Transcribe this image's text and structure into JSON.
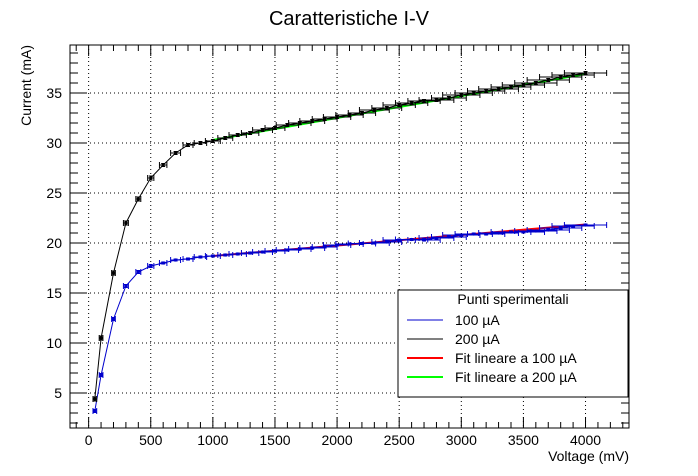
{
  "chart_data": {
    "type": "line",
    "title": "Caratteristiche I-V",
    "xlabel": "Voltage (mV)",
    "ylabel": "Current (mA)",
    "xlim": [
      -150,
      4350
    ],
    "ylim": [
      1.5,
      39.8
    ],
    "xticks": [
      0,
      500,
      1000,
      1500,
      2000,
      2500,
      3000,
      3500,
      4000
    ],
    "yticks": [
      5,
      10,
      15,
      20,
      25,
      30,
      35
    ],
    "grid": true,
    "legend": {
      "title": "Punti sperimentali",
      "placement": "bottom-right",
      "entries": [
        "100 µA",
        "200 µA",
        "Fit lineare a 100 µA",
        "Fit lineare a 200 µA"
      ]
    },
    "series": [
      {
        "name": "100 µA",
        "color": "#0000cc",
        "x": [
          50,
          100,
          200,
          300,
          400,
          500,
          600,
          700,
          800,
          900,
          1000,
          1100,
          1200,
          1300,
          1400,
          1500,
          1600,
          1700,
          1800,
          1900,
          2000,
          2100,
          2200,
          2300,
          2400,
          2500,
          2600,
          2700,
          2800,
          2900,
          3000,
          3100,
          3200,
          3300,
          3400,
          3500,
          3600,
          3700,
          3800,
          3900,
          4000
        ],
        "y": [
          3.2,
          6.8,
          12.4,
          15.7,
          17.1,
          17.7,
          18.0,
          18.3,
          18.4,
          18.6,
          18.7,
          18.8,
          18.9,
          19.0,
          19.1,
          19.2,
          19.3,
          19.4,
          19.5,
          19.6,
          19.8,
          19.9,
          19.95,
          20.0,
          20.1,
          20.3,
          20.35,
          20.3,
          20.5,
          20.6,
          20.8,
          20.9,
          20.9,
          21.0,
          21.1,
          21.1,
          21.2,
          21.3,
          21.5,
          21.7,
          21.8
        ],
        "xerr": [
          15,
          15,
          15,
          20,
          20,
          25,
          30,
          40,
          40,
          50,
          60,
          60,
          70,
          70,
          80,
          80,
          90,
          90,
          100,
          100,
          110,
          110,
          110,
          120,
          120,
          130,
          130,
          130,
          140,
          140,
          150,
          150,
          150,
          160,
          160,
          170,
          170,
          170,
          170,
          170,
          170
        ],
        "yerr": [
          0.15,
          0.15,
          0.15,
          0.15,
          0.15,
          0.15,
          0.1,
          0.1,
          0.1,
          0.1,
          0.1,
          0.1,
          0.1,
          0.1,
          0.1,
          0.1,
          0.1,
          0.1,
          0.1,
          0.1,
          0.1,
          0.1,
          0.1,
          0.1,
          0.1,
          0.1,
          0.1,
          0.1,
          0.1,
          0.1,
          0.1,
          0.1,
          0.1,
          0.1,
          0.1,
          0.1,
          0.1,
          0.1,
          0.1,
          0.1,
          0.1
        ]
      },
      {
        "name": "200 µA",
        "color": "#000000",
        "x": [
          50,
          100,
          200,
          300,
          400,
          500,
          600,
          700,
          800,
          900,
          1000,
          1100,
          1200,
          1300,
          1400,
          1500,
          1600,
          1700,
          1800,
          1900,
          2000,
          2100,
          2200,
          2300,
          2400,
          2500,
          2600,
          2700,
          2800,
          2900,
          3000,
          3100,
          3200,
          3300,
          3400,
          3500,
          3600,
          3700,
          3800,
          3900,
          4000
        ],
        "y": [
          4.4,
          10.5,
          17.0,
          22.0,
          24.4,
          26.5,
          27.8,
          29.0,
          29.8,
          30.0,
          30.2,
          30.5,
          30.8,
          31.0,
          31.3,
          31.5,
          31.8,
          32.0,
          32.2,
          32.4,
          32.6,
          32.8,
          33.0,
          33.3,
          33.5,
          33.8,
          34.0,
          34.2,
          34.3,
          34.5,
          34.8,
          35.0,
          35.2,
          35.4,
          35.6,
          35.8,
          36.0,
          36.3,
          36.6,
          36.8,
          37.0
        ],
        "xerr": [
          15,
          15,
          15,
          20,
          20,
          25,
          30,
          40,
          40,
          50,
          60,
          60,
          70,
          70,
          80,
          80,
          90,
          90,
          100,
          100,
          110,
          110,
          110,
          120,
          120,
          130,
          130,
          130,
          140,
          140,
          150,
          150,
          150,
          160,
          160,
          170,
          170,
          170,
          170,
          170,
          170
        ],
        "yerr": [
          0.2,
          0.2,
          0.2,
          0.2,
          0.2,
          0.2,
          0.15,
          0.15,
          0.15,
          0.15,
          0.15,
          0.15,
          0.15,
          0.15,
          0.15,
          0.15,
          0.15,
          0.15,
          0.15,
          0.15,
          0.15,
          0.15,
          0.15,
          0.15,
          0.15,
          0.15,
          0.15,
          0.15,
          0.15,
          0.15,
          0.15,
          0.15,
          0.15,
          0.15,
          0.15,
          0.15,
          0.15,
          0.15,
          0.15,
          0.15,
          0.15
        ]
      }
    ],
    "fits": [
      {
        "name": "Fit lineare a 100 µA",
        "color": "#ff0000",
        "x": [
          1000,
          4000
        ],
        "y": [
          18.7,
          21.85
        ]
      },
      {
        "name": "Fit lineare a 200 µA",
        "color": "#00ff00",
        "x": [
          1000,
          4000
        ],
        "y": [
          30.3,
          36.9
        ]
      }
    ]
  }
}
